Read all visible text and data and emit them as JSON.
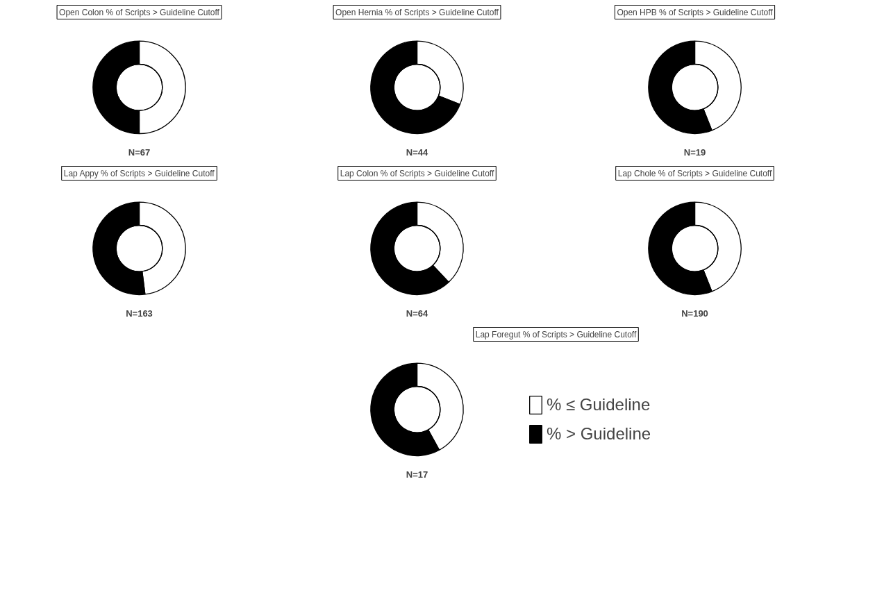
{
  "chart_data": [
    {
      "type": "donut",
      "title": "Open Colon % of Scripts > Guideline Cutoff",
      "categories": [
        null,
        null
      ],
      "values": [
        50,
        50
      ],
      "colors": [
        "#ffffff",
        "#000000"
      ],
      "annotations": [
        "N=67"
      ]
    },
    {
      "type": "donut",
      "title": "Open Hernia % of Scripts > Guideline Cutoff",
      "categories": [
        null,
        null
      ],
      "values": [
        31,
        69
      ],
      "colors": [
        "#ffffff",
        "#000000"
      ],
      "annotations": [
        "N=44"
      ]
    },
    {
      "type": "donut",
      "title": "Open HPB % of Scripts > Guideline Cutoff",
      "categories": [
        null,
        null
      ],
      "values": [
        44,
        56
      ],
      "colors": [
        "#ffffff",
        "#000000"
      ],
      "annotations": [
        "N=19"
      ]
    },
    {
      "type": "donut",
      "title": "Lap Appy % of Scripts > Guideline Cutoff",
      "categories": [
        null,
        null
      ],
      "values": [
        48,
        52
      ],
      "colors": [
        "#ffffff",
        "#000000"
      ],
      "annotations": [
        "N=163"
      ]
    },
    {
      "type": "donut",
      "title": "Lap Colon % of Scripts > Guideline Cutoff",
      "categories": [
        null,
        null
      ],
      "values": [
        38,
        62
      ],
      "colors": [
        "#ffffff",
        "#000000"
      ],
      "annotations": [
        "N=64"
      ]
    },
    {
      "type": "donut",
      "title": "Lap Chole % of Scripts > Guideline Cutoff",
      "categories": [
        null,
        null
      ],
      "values": [
        44,
        56
      ],
      "colors": [
        "#ffffff",
        "#000000"
      ],
      "annotations": [
        "N=190"
      ]
    },
    {
      "type": "donut",
      "title": "Lap Foregut % of Scripts > Guideline Cutoff",
      "categories": [
        "% ≤ Guideline",
        "% > Guideline"
      ],
      "values": [
        42,
        58
      ],
      "colors": [
        "#ffffff",
        "#000000"
      ],
      "annotations": [
        "N=17"
      ],
      "legend": "right"
    }
  ]
}
